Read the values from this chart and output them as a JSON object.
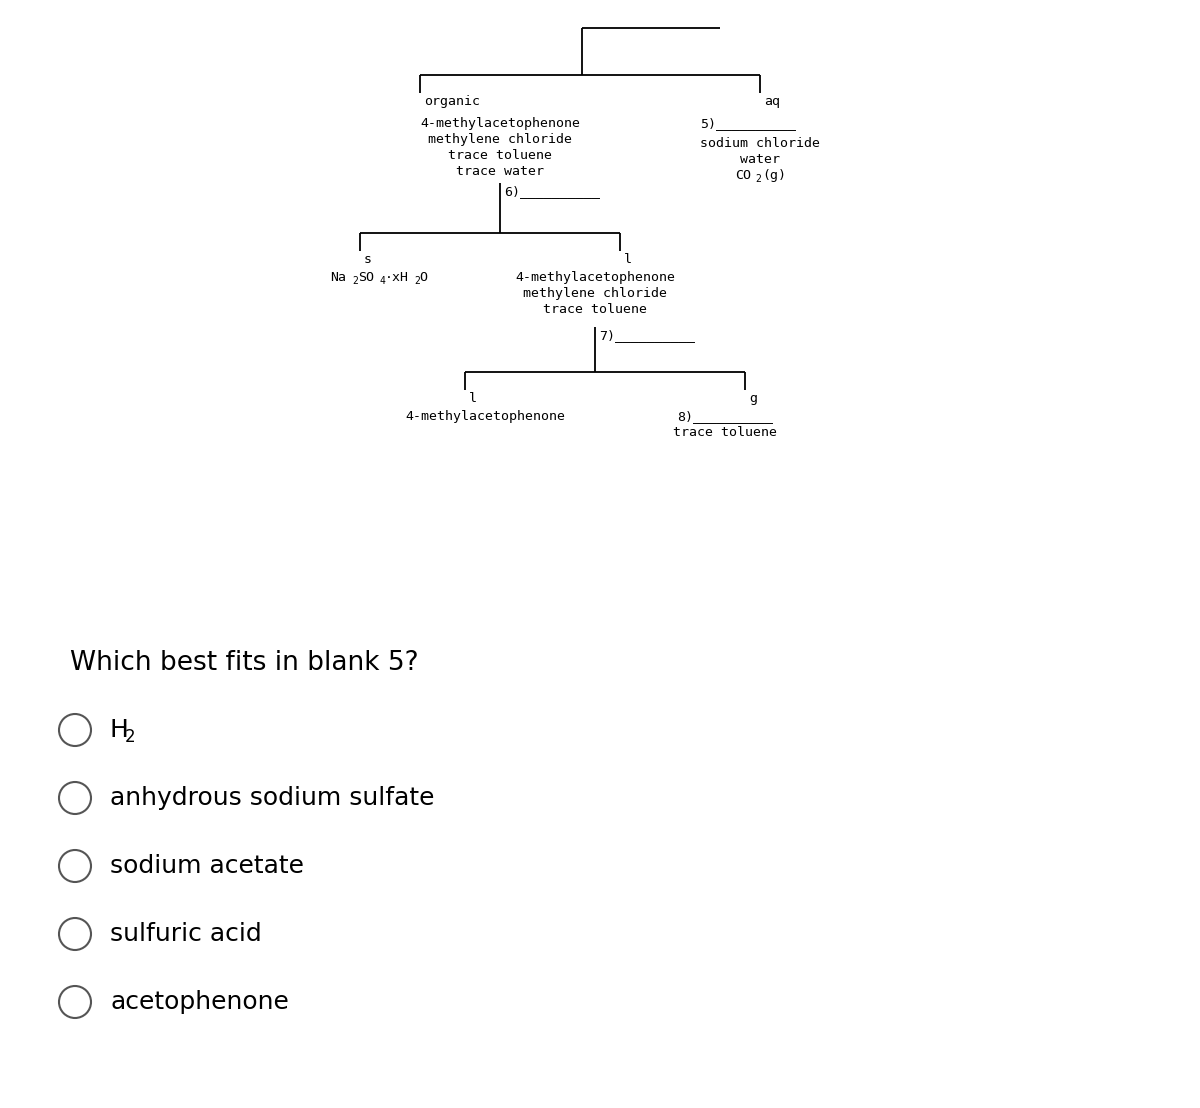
{
  "bg_color": "#ffffff",
  "title_question": "Which best fits in blank 5?",
  "choices": [
    "H$_2$",
    "anhydrous sodium sulfate",
    "sodium acetate",
    "sulfuric acid",
    "acetophenone"
  ],
  "choice_labels": [
    "H2",
    "anhydrous sodium sulfate",
    "sodium acetate",
    "sulfuric acid",
    "acetophenone"
  ],
  "fig_w": 12.0,
  "fig_h": 11.08,
  "dpi": 100
}
